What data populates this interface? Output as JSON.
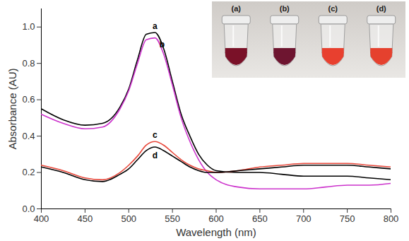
{
  "chart_data": {
    "type": "line",
    "x_label": "Wavelength (nm)",
    "y_label": "Absorbance (AU)",
    "x": [
      400,
      425,
      450,
      470,
      490,
      500,
      510,
      520,
      530,
      540,
      550,
      560,
      570,
      580,
      590,
      600,
      625,
      650,
      675,
      700,
      725,
      750,
      775,
      800
    ],
    "series": [
      {
        "name": "a",
        "color": "#000000",
        "values": [
          0.55,
          0.49,
          0.46,
          0.47,
          0.56,
          0.66,
          0.82,
          0.96,
          0.97,
          0.88,
          0.7,
          0.52,
          0.4,
          0.3,
          0.24,
          0.21,
          0.2,
          0.2,
          0.19,
          0.18,
          0.18,
          0.18,
          0.17,
          0.16
        ]
      },
      {
        "name": "b",
        "color": "#cc33cc",
        "values": [
          0.52,
          0.47,
          0.44,
          0.45,
          0.55,
          0.65,
          0.8,
          0.93,
          0.94,
          0.85,
          0.68,
          0.5,
          0.37,
          0.27,
          0.2,
          0.16,
          0.12,
          0.11,
          0.11,
          0.11,
          0.12,
          0.13,
          0.13,
          0.14
        ]
      },
      {
        "name": "c",
        "color": "#e8473a",
        "values": [
          0.24,
          0.21,
          0.17,
          0.16,
          0.2,
          0.24,
          0.29,
          0.35,
          0.37,
          0.35,
          0.31,
          0.27,
          0.24,
          0.22,
          0.21,
          0.2,
          0.21,
          0.23,
          0.24,
          0.25,
          0.25,
          0.25,
          0.24,
          0.23
        ]
      },
      {
        "name": "d",
        "color": "#000000",
        "values": [
          0.23,
          0.2,
          0.16,
          0.15,
          0.19,
          0.22,
          0.27,
          0.32,
          0.34,
          0.32,
          0.29,
          0.26,
          0.23,
          0.21,
          0.2,
          0.2,
          0.21,
          0.22,
          0.23,
          0.24,
          0.24,
          0.24,
          0.23,
          0.22
        ]
      }
    ],
    "xlim": [
      400,
      800
    ],
    "xticks": [
      400,
      450,
      500,
      550,
      600,
      650,
      700,
      750,
      800
    ],
    "ylim": [
      0,
      1.1
    ],
    "yticks": [
      {
        "value": 0,
        "label": "0.0"
      },
      {
        "value": 0.2,
        "label": "0.2"
      },
      {
        "value": 0.4,
        "label": "0.4"
      },
      {
        "value": 0.6,
        "label": "0.6"
      },
      {
        "value": 0.8,
        "label": "0.8"
      },
      {
        "value": 1.0,
        "label": "1.0"
      }
    ],
    "grid": false,
    "inset": {
      "labels": [
        "(a)",
        "(b)",
        "(c)",
        "(d)"
      ],
      "colors": [
        "#7a1128",
        "#6e1530",
        "#e8402f",
        "#e5412e"
      ]
    }
  }
}
